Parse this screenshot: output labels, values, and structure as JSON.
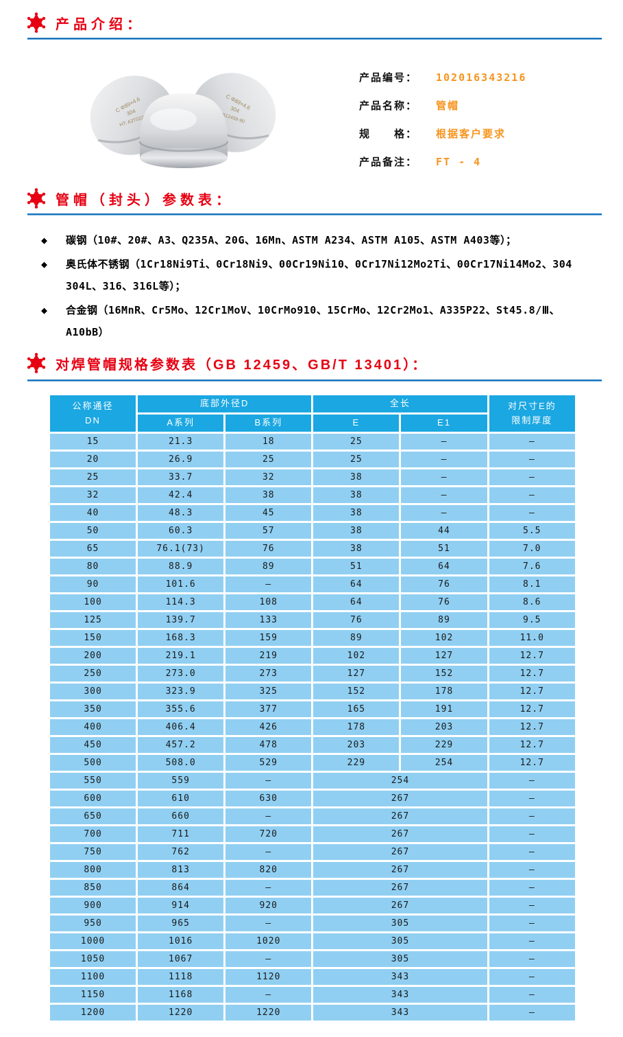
{
  "colors": {
    "accent_red": "#e60012",
    "accent_orange": "#f7941d",
    "rule_blue": "#1873bd",
    "table_header_blue": "#1ba7e1",
    "table_row_blue": "#90cff2"
  },
  "sections": {
    "intro": {
      "title": "产品介绍："
    },
    "params": {
      "title": "管帽（封头）参数表：",
      "bullets": [
        "碳钢（10#、20#、A3、Q235A、20G、16Mn、ASTM A234、ASTM A105、ASTM A403等）；",
        "奥氏体不锈钢（1Cr18Ni9Ti、0Cr18Ni9、00Cr19Ni10、0Cr17Ni12Mo2Ti、00Cr17Ni14Mo2、304 304L、316、316L等）；",
        "合金钢（16MnR、Cr5Mo、12Cr1MoV、10CrMo910、15CrMo、12Cr2Mo1、A335P22、St45.8/Ⅲ、A10bB）"
      ]
    },
    "spec": {
      "title": "对焊管帽规格参数表（GB 12459、GB/T 13401）："
    }
  },
  "product": {
    "fields": [
      {
        "label": "产品编号：",
        "value": "102016343216"
      },
      {
        "label": "产品名称：",
        "value": "管帽"
      },
      {
        "label": "规　　格：",
        "value": "根据客户要求"
      },
      {
        "label": "产品备注：",
        "value": "FT - 4"
      }
    ],
    "stamps": [
      "C Φ89×4.6",
      "304",
      "HT: A3T0223B",
      "GB12459-90"
    ]
  },
  "table": {
    "header": {
      "col_dn_line1": "公称通径",
      "col_dn_line2": "DN",
      "group_outer_diameter": "底部外径D",
      "col_series_a": "A系列",
      "col_series_b": "B系列",
      "group_length": "全长",
      "col_e": "E",
      "col_e1": "E1",
      "col_limit_line1": "对尺寸E的",
      "col_limit_line2": "限制厚度"
    },
    "rows": [
      {
        "dn": "15",
        "a": "21.3",
        "b": "18",
        "e": "25",
        "e1": "–",
        "t": "–"
      },
      {
        "dn": "20",
        "a": "26.9",
        "b": "25",
        "e": "25",
        "e1": "–",
        "t": "–"
      },
      {
        "dn": "25",
        "a": "33.7",
        "b": "32",
        "e": "38",
        "e1": "–",
        "t": "–"
      },
      {
        "dn": "32",
        "a": "42.4",
        "b": "38",
        "e": "38",
        "e1": "–",
        "t": "–"
      },
      {
        "dn": "40",
        "a": "48.3",
        "b": "45",
        "e": "38",
        "e1": "–",
        "t": "–"
      },
      {
        "dn": "50",
        "a": "60.3",
        "b": "57",
        "e": "38",
        "e1": "44",
        "t": "5.5"
      },
      {
        "dn": "65",
        "a": "76.1(73)",
        "b": "76",
        "e": "38",
        "e1": "51",
        "t": "7.0"
      },
      {
        "dn": "80",
        "a": "88.9",
        "b": "89",
        "e": "51",
        "e1": "64",
        "t": "7.6"
      },
      {
        "dn": "90",
        "a": "101.6",
        "b": "–",
        "e": "64",
        "e1": "76",
        "t": "8.1"
      },
      {
        "dn": "100",
        "a": "114.3",
        "b": "108",
        "e": "64",
        "e1": "76",
        "t": "8.6"
      },
      {
        "dn": "125",
        "a": "139.7",
        "b": "133",
        "e": "76",
        "e1": "89",
        "t": "9.5"
      },
      {
        "dn": "150",
        "a": "168.3",
        "b": "159",
        "e": "89",
        "e1": "102",
        "t": "11.0"
      },
      {
        "dn": "200",
        "a": "219.1",
        "b": "219",
        "e": "102",
        "e1": "127",
        "t": "12.7"
      },
      {
        "dn": "250",
        "a": "273.0",
        "b": "273",
        "e": "127",
        "e1": "152",
        "t": "12.7"
      },
      {
        "dn": "300",
        "a": "323.9",
        "b": "325",
        "e": "152",
        "e1": "178",
        "t": "12.7"
      },
      {
        "dn": "350",
        "a": "355.6",
        "b": "377",
        "e": "165",
        "e1": "191",
        "t": "12.7"
      },
      {
        "dn": "400",
        "a": "406.4",
        "b": "426",
        "e": "178",
        "e1": "203",
        "t": "12.7"
      },
      {
        "dn": "450",
        "a": "457.2",
        "b": "478",
        "e": "203",
        "e1": "229",
        "t": "12.7"
      },
      {
        "dn": "500",
        "a": "508.0",
        "b": "529",
        "e": "229",
        "e1": "254",
        "t": "12.7"
      },
      {
        "dn": "550",
        "a": "559",
        "b": "–",
        "e": "254",
        "e1": null,
        "t": "–"
      },
      {
        "dn": "600",
        "a": "610",
        "b": "630",
        "e": "267",
        "e1": null,
        "t": "–"
      },
      {
        "dn": "650",
        "a": "660",
        "b": "–",
        "e": "267",
        "e1": null,
        "t": "–"
      },
      {
        "dn": "700",
        "a": "711",
        "b": "720",
        "e": "267",
        "e1": null,
        "t": "–"
      },
      {
        "dn": "750",
        "a": "762",
        "b": "–",
        "e": "267",
        "e1": null,
        "t": "–"
      },
      {
        "dn": "800",
        "a": "813",
        "b": "820",
        "e": "267",
        "e1": null,
        "t": "–"
      },
      {
        "dn": "850",
        "a": "864",
        "b": "–",
        "e": "267",
        "e1": null,
        "t": "–"
      },
      {
        "dn": "900",
        "a": "914",
        "b": "920",
        "e": "267",
        "e1": null,
        "t": "–"
      },
      {
        "dn": "950",
        "a": "965",
        "b": "–",
        "e": "305",
        "e1": null,
        "t": "–"
      },
      {
        "dn": "1000",
        "a": "1016",
        "b": "1020",
        "e": "305",
        "e1": null,
        "t": "–"
      },
      {
        "dn": "1050",
        "a": "1067",
        "b": "–",
        "e": "305",
        "e1": null,
        "t": "–"
      },
      {
        "dn": "1100",
        "a": "1118",
        "b": "1120",
        "e": "343",
        "e1": null,
        "t": "–"
      },
      {
        "dn": "1150",
        "a": "1168",
        "b": "–",
        "e": "343",
        "e1": null,
        "t": "–"
      },
      {
        "dn": "1200",
        "a": "1220",
        "b": "1220",
        "e": "343",
        "e1": null,
        "t": "–"
      }
    ]
  }
}
